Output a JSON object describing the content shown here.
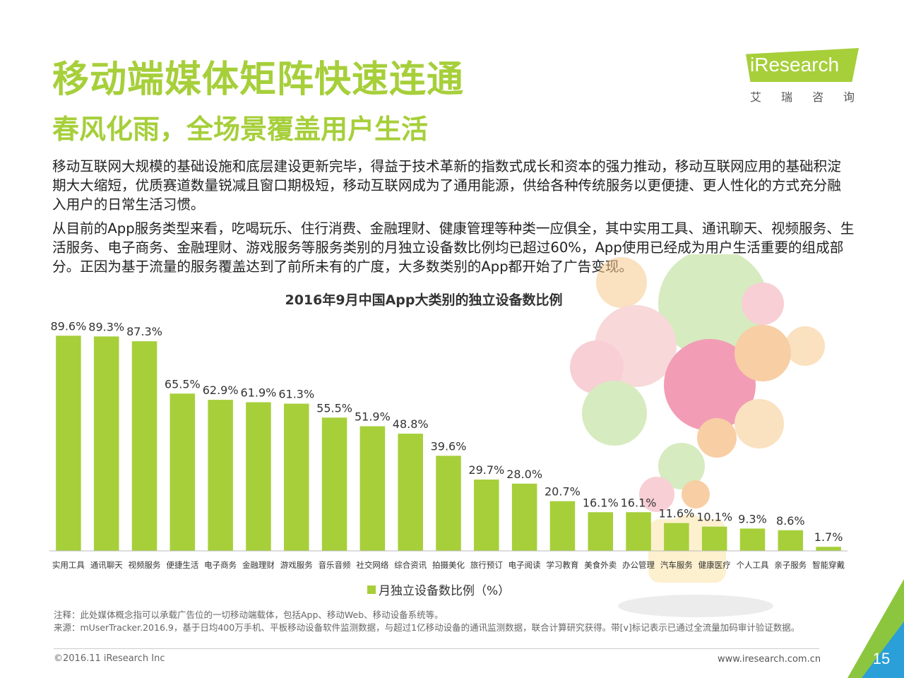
{
  "header": {
    "title": "移动端媒体矩阵快速连通",
    "subtitle": "春风化雨，全场景覆盖用户生活",
    "logo_text": "iResearch",
    "logo_cn": "艾瑞咨询"
  },
  "body": {
    "paragraph1": "移动互联网大规模的基础设施和底层建设更新完毕，得益于技术革新的指数式成长和资本的强力推动，移动互联网应用的基础积淀期大大缩短，优质赛道数量锐减且窗口期极短，移动互联网成为了通用能源，供给各种传统服务以更便捷、更人性化的方式充分融入用户的日常生活习惯。",
    "paragraph2": "从目前的App服务类型来看，吃喝玩乐、住行消费、金融理财、健康管理等种类一应俱全，其中实用工具、通讯聊天、视频服务、生活服务、电子商务、金融理财、游戏服务等服务类别的月独立设备数比例均已超过60%，App使用已经成为用户生活重要的组成部分。正因为基于流量的服务覆盖达到了前所未有的广度，大多数类别的App都开始了广告变现。"
  },
  "chart_data": {
    "type": "bar",
    "title": "2016年9月中国App大类别的独立设备数比例",
    "categories": [
      "实用工具",
      "通讯聊天",
      "视频服务",
      "便捷生活",
      "电子商务",
      "金融理财",
      "游戏服务",
      "音乐音频",
      "社交网络",
      "综合资讯",
      "拍摄美化",
      "旅行预订",
      "电子阅读",
      "学习教育",
      "美食外卖",
      "办公管理",
      "汽车服务",
      "健康医疗",
      "个人工具",
      "亲子服务",
      "智能穿戴"
    ],
    "series": [
      {
        "name": "月独立设备数比例（%）",
        "values": [
          89.6,
          89.3,
          87.3,
          65.5,
          62.9,
          61.9,
          61.3,
          55.5,
          51.9,
          48.8,
          39.6,
          29.7,
          28.0,
          20.7,
          16.1,
          16.1,
          11.6,
          10.1,
          9.3,
          8.6,
          1.7
        ],
        "labels": [
          "89.6%",
          "89.3%",
          "87.3%",
          "65.5%",
          "62.9%",
          "61.9%",
          "61.3%",
          "55.5%",
          "51.9%",
          "48.8%",
          "39.6%",
          "29.7%",
          "28.0%",
          "20.7%",
          "16.1%",
          "16.1%",
          "11.6%",
          "10.1%",
          "9.3%",
          "8.6%",
          "1.7%"
        ]
      }
    ],
    "ylim": [
      0,
      100
    ],
    "grid": false,
    "legend_position": "bottom",
    "bar_color": "#a6cf3a"
  },
  "footer": {
    "note1": "注释：此处媒体概念指可以承载广告位的一切移动端载体，包括App、移动Web、移动设备系统等。",
    "note2": "来源：mUserTracker.2016.9，基于日均400万手机、平板移动设备软件监测数据，与超过1亿移动设备的通讯监测数据，联合计算研究获得。带[v]标记表示已通过全流量加码审计验证数据。",
    "copyright": "©2016.11 iResearch Inc",
    "url": "www.iresearch.com.cn",
    "page": "15"
  },
  "colors": {
    "accent": "#a6cf3a",
    "corner_green": "#8cc63f",
    "corner_blue": "#2a9fd8"
  }
}
